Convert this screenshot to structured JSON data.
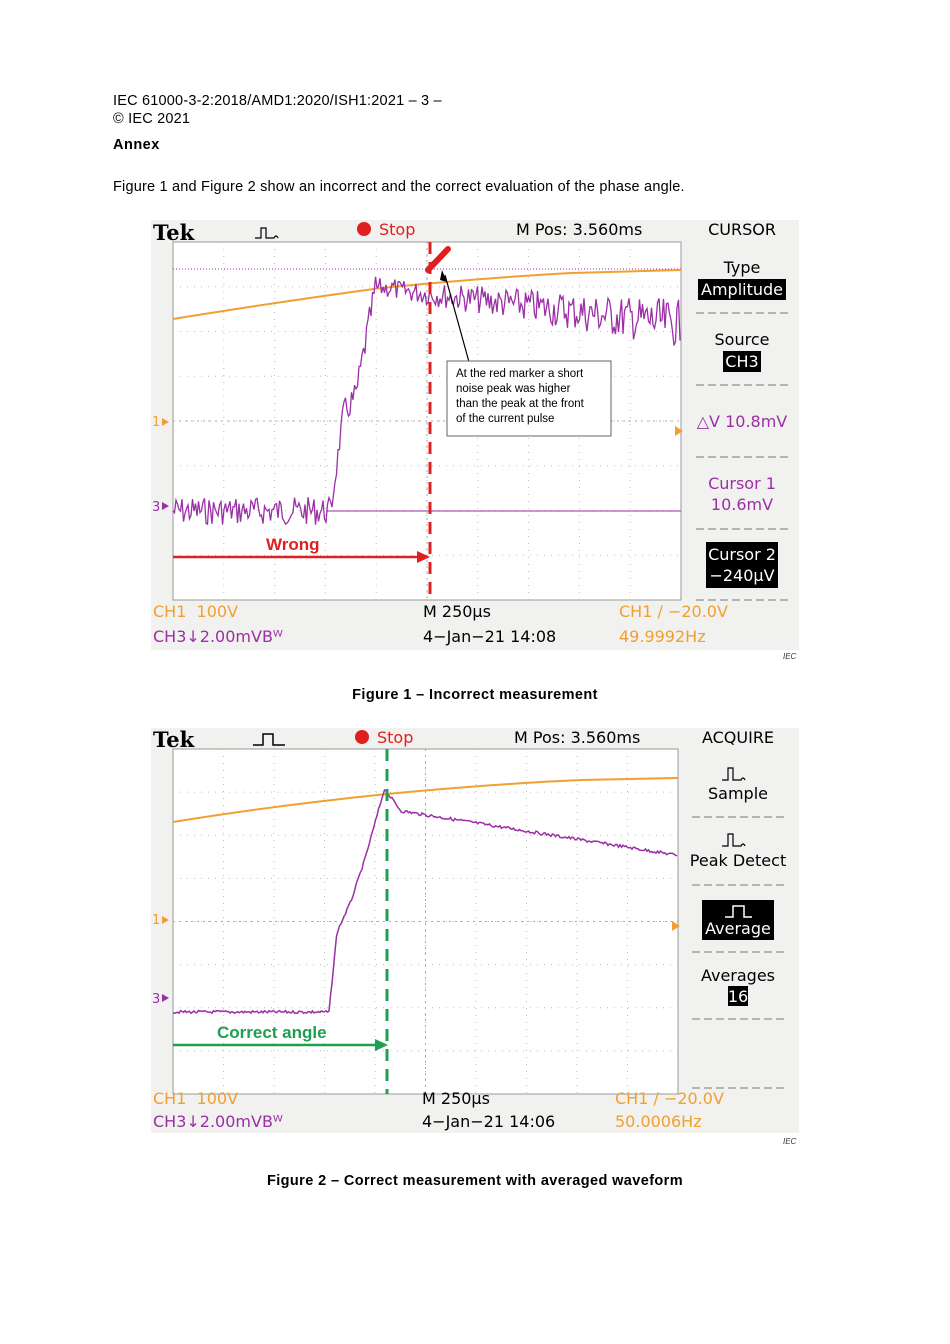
{
  "header": {
    "line1": "IEC 61000-3-2:2018/AMD1:2020/ISH1:2021 – 3 –",
    "line2": "© IEC 2021",
    "annex": "Annex",
    "intro": "Figure 1 and Figure 2 show an incorrect and the correct evaluation of the phase angle."
  },
  "fig1": {
    "brand": "Tek",
    "status": "Stop",
    "mpos": "M Pos: 3.560ms",
    "menu_title": "CURSOR",
    "type_label": "Type",
    "type_value": "Amplitude",
    "source_label": "Source",
    "source_value": "CH3",
    "delta": "△V 10.8mV",
    "cursor1_l1": "Cursor 1",
    "cursor1_l2": "10.6mV",
    "cursor2_l1": "Cursor 2",
    "cursor2_l2": "−240µV",
    "ch1": "CH1  100V",
    "ch3": "CH3↓2.00mVBᵂ",
    "timebase": "M 250µs",
    "datetime": "4−Jan−21 14:08",
    "trigger": "CH1 ∕ −20.0V",
    "freq": "49.9992Hz",
    "marker1": "1",
    "marker3": "3",
    "callout": [
      "At the red marker a short",
      "noise peak was higher",
      "than the peak at the front",
      "of the current pulse"
    ],
    "arrow_label": "Wrong",
    "iec": "IEC",
    "caption": "Figure 1 – Incorrect measurement"
  },
  "fig2": {
    "brand": "Tek",
    "status": "Stop",
    "mpos": "M Pos: 3.560ms",
    "menu_title": "ACQUIRE",
    "opt1": "Sample",
    "opt2": "Peak Detect",
    "opt3": "Average",
    "avg_label": "Averages",
    "avg_value": "16",
    "ch1": "CH1  100V",
    "ch3": "CH3↓2.00mVBᵂ",
    "timebase": "M 250µs",
    "datetime": "4−Jan−21 14:06",
    "trigger": "CH1 ∕ −20.0V",
    "freq": "50.0006Hz",
    "marker1": "1",
    "marker3": "3",
    "arrow_label": "Correct angle",
    "iec": "IEC",
    "caption": "Figure 2 – Correct measurement with averaged waveform"
  },
  "colors": {
    "purple": "#9b2fa6",
    "orange": "#f0a030",
    "red": "#e02020",
    "green": "#1ea050"
  }
}
